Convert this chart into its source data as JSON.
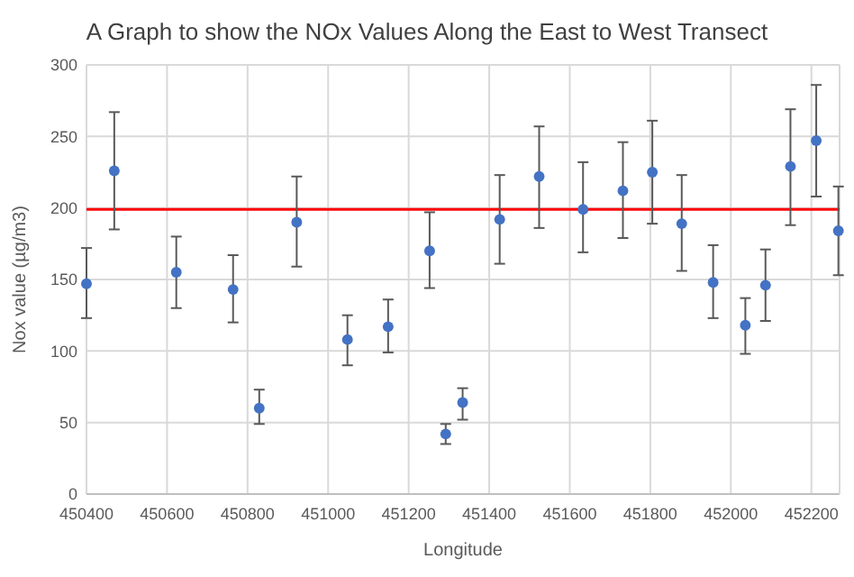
{
  "chart_data": {
    "type": "scatter",
    "title": "A Graph to show the NOx Values Along the East to West Transect",
    "xlabel": "Longitude",
    "ylabel": "Nox value (µg/m3)",
    "x": [
      450400,
      450469,
      450623,
      450764,
      450829,
      450922,
      451048,
      451149,
      451252,
      451292,
      451334,
      451426,
      451524,
      451633,
      451732,
      451805,
      451878,
      451956,
      452036,
      452086,
      452148,
      452212,
      452267
    ],
    "series": [
      {
        "color": "#4472c4",
        "values": [
          147,
          226,
          155,
          143,
          60,
          190,
          108,
          117,
          170,
          42,
          64,
          192,
          222,
          199,
          212,
          225,
          189,
          148,
          118,
          146,
          229,
          247,
          184
        ],
        "errors": [
          [
            123,
            172
          ],
          [
            185,
            267
          ],
          [
            130,
            180
          ],
          [
            120,
            167
          ],
          [
            49,
            73
          ],
          [
            159,
            222
          ],
          [
            90,
            125
          ],
          [
            99,
            136
          ],
          [
            144,
            197
          ],
          [
            35,
            49
          ],
          [
            52,
            74
          ],
          [
            161,
            223
          ],
          [
            186,
            257
          ],
          [
            169,
            232
          ],
          [
            179,
            246
          ],
          [
            189,
            261
          ],
          [
            156,
            223
          ],
          [
            123,
            174
          ],
          [
            98,
            137
          ],
          [
            121,
            171
          ],
          [
            188,
            269
          ],
          [
            208,
            286
          ],
          [
            153,
            215
          ]
        ]
      }
    ],
    "xlim": [
      450400,
      452270
    ],
    "xticks": [
      450400,
      450600,
      450800,
      451000,
      451200,
      451400,
      451600,
      451800,
      452000,
      452200
    ],
    "ylim": [
      0,
      300
    ],
    "yticks": [
      0,
      50,
      100,
      150,
      200,
      250,
      300
    ],
    "grid": true,
    "marker": "circle",
    "ref_lines": [
      {
        "axis": "y",
        "value": 199,
        "color": "#ff0000"
      }
    ]
  }
}
